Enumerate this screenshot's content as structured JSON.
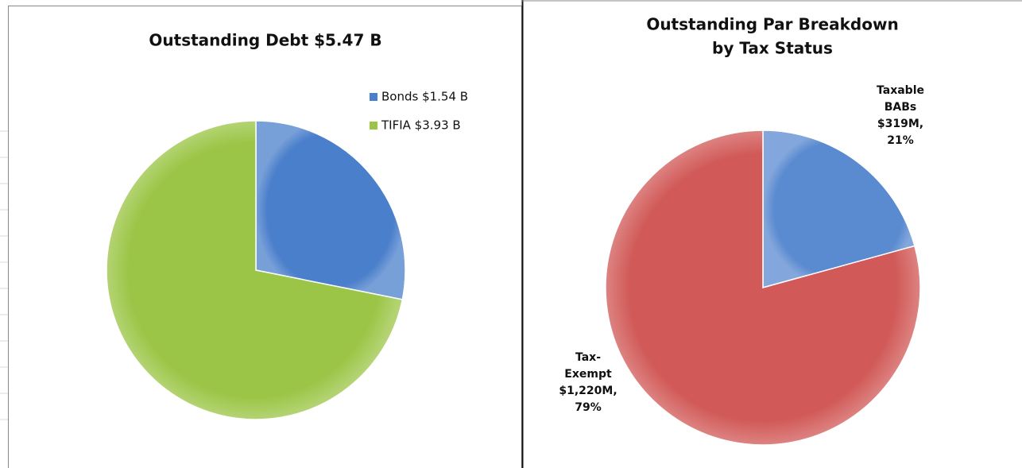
{
  "chart_data": [
    {
      "type": "pie",
      "title": [
        "Outstanding Debt $5.47 B"
      ],
      "categories": [
        "Bonds $1.54 B",
        "TIFIA $3.93 B"
      ],
      "values": [
        1.54,
        3.93
      ],
      "colors": [
        "#4a7fcb",
        "#9bc546"
      ],
      "legend": "top-right"
    },
    {
      "type": "pie",
      "title": [
        "Outstanding Par Breakdown",
        "by Tax Status"
      ],
      "categories": [
        "Taxable BABs",
        "Tax-Exempt"
      ],
      "values": [
        319,
        1220
      ],
      "value_labels": [
        "$319M, 21%",
        "$1,220M, 79%"
      ],
      "colors": [
        "#5a8ad0",
        "#d15a58"
      ]
    }
  ]
}
